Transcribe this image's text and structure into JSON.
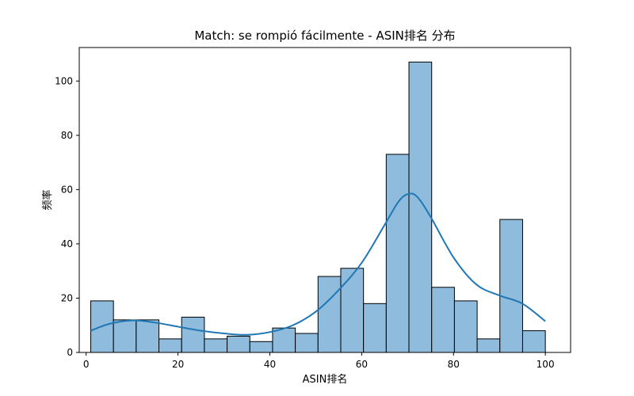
{
  "chart_data": {
    "type": "bar",
    "title": "Match: se rompió fácilmente - ASIN排名 分布",
    "xlabel": "ASIN排名",
    "ylabel": "频率",
    "xlim": [
      -1.5,
      105.5
    ],
    "ylim": [
      0,
      112.35
    ],
    "xticks": [
      0,
      20,
      40,
      60,
      80,
      100
    ],
    "yticks": [
      0,
      20,
      40,
      60,
      80,
      100
    ],
    "bins": [
      {
        "x0": 1.0,
        "x1": 5.95,
        "count": 19
      },
      {
        "x0": 5.95,
        "x1": 10.9,
        "count": 12
      },
      {
        "x0": 10.9,
        "x1": 15.85,
        "count": 12
      },
      {
        "x0": 15.85,
        "x1": 20.8,
        "count": 5
      },
      {
        "x0": 20.8,
        "x1": 25.75,
        "count": 13
      },
      {
        "x0": 25.75,
        "x1": 30.7,
        "count": 5
      },
      {
        "x0": 30.7,
        "x1": 35.65,
        "count": 6
      },
      {
        "x0": 35.65,
        "x1": 40.6,
        "count": 4
      },
      {
        "x0": 40.6,
        "x1": 45.55,
        "count": 9
      },
      {
        "x0": 45.55,
        "x1": 50.5,
        "count": 7
      },
      {
        "x0": 50.5,
        "x1": 55.45,
        "count": 28
      },
      {
        "x0": 55.45,
        "x1": 60.4,
        "count": 31
      },
      {
        "x0": 60.4,
        "x1": 65.35,
        "count": 18
      },
      {
        "x0": 65.35,
        "x1": 70.3,
        "count": 73
      },
      {
        "x0": 70.3,
        "x1": 75.25,
        "count": 107
      },
      {
        "x0": 75.25,
        "x1": 80.2,
        "count": 24
      },
      {
        "x0": 80.2,
        "x1": 85.15,
        "count": 19
      },
      {
        "x0": 85.15,
        "x1": 90.1,
        "count": 5
      },
      {
        "x0": 90.1,
        "x1": 95.05,
        "count": 49
      },
      {
        "x0": 95.05,
        "x1": 100.0,
        "count": 8
      }
    ],
    "kde": {
      "x": [
        1,
        5,
        10,
        15,
        20,
        25,
        30,
        35,
        40,
        45,
        50,
        55,
        60,
        65,
        68,
        70,
        72,
        75,
        80,
        85,
        90,
        95,
        100
      ],
      "y": [
        8,
        10.5,
        11.8,
        11,
        9.5,
        8,
        7,
        6.5,
        7.5,
        10,
        15,
        23,
        33,
        47,
        55.5,
        58.3,
        57.5,
        50,
        35,
        25,
        21,
        18,
        11.5
      ]
    },
    "colors": {
      "bar_fill": "#8fbcdd",
      "bar_edge": "#000000",
      "kde_line": "#1f77b4"
    },
    "grid": false
  }
}
